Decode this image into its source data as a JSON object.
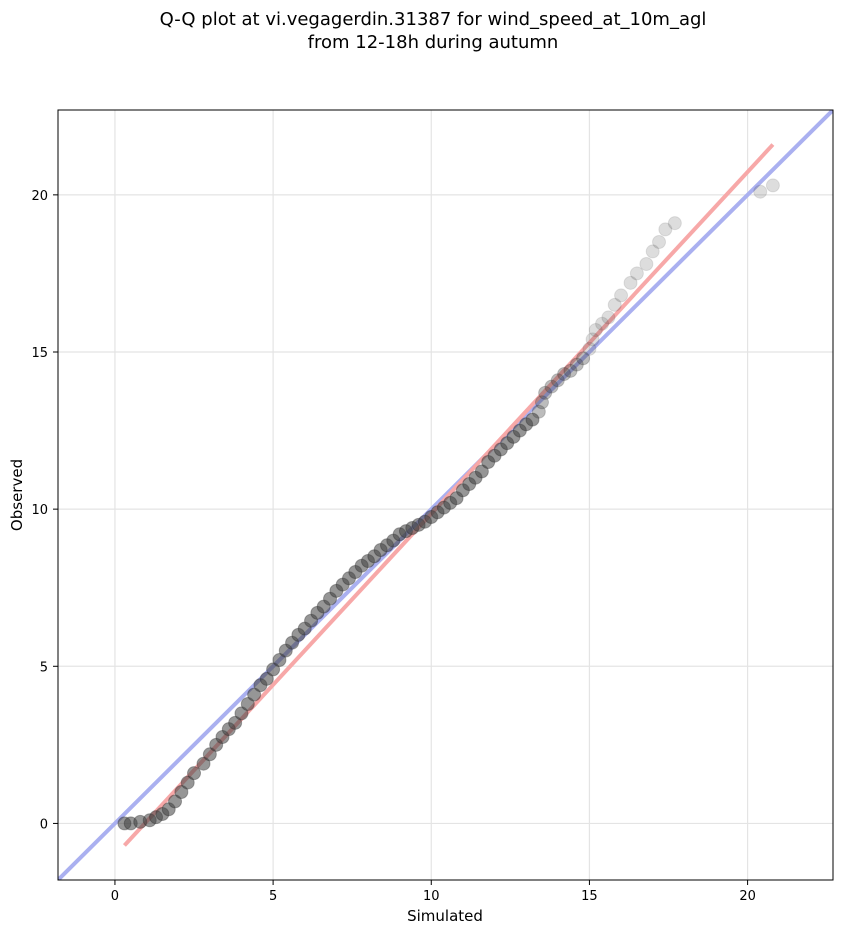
{
  "chart_data": {
    "type": "scatter",
    "title_lines": [
      "Q-Q plot at vi.vegagerdin.31387 for wind_speed_at_10m_agl",
      "from 12-18h during autumn"
    ],
    "xlabel": "Simulated",
    "ylabel": "Observed",
    "xlim": [
      -1.8,
      22.7
    ],
    "ylim": [
      -1.8,
      22.7
    ],
    "xticks": [
      0,
      5,
      10,
      15,
      20
    ],
    "yticks": [
      0,
      5,
      10,
      15,
      20
    ],
    "grid": true,
    "reference_line": {
      "color": "#aab0f0",
      "from": [
        -1.8,
        -1.8
      ],
      "to": [
        22.7,
        22.7
      ]
    },
    "fit_line": {
      "color": "#f7a8a8",
      "from": [
        0.3,
        -0.7
      ],
      "to": [
        20.8,
        21.6
      ]
    },
    "points": [
      [
        0.3,
        0.0
      ],
      [
        0.5,
        0.0
      ],
      [
        0.8,
        0.05
      ],
      [
        1.1,
        0.1
      ],
      [
        1.3,
        0.2
      ],
      [
        1.5,
        0.3
      ],
      [
        1.7,
        0.45
      ],
      [
        1.9,
        0.7
      ],
      [
        2.1,
        1.0
      ],
      [
        2.3,
        1.3
      ],
      [
        2.5,
        1.6
      ],
      [
        2.8,
        1.9
      ],
      [
        3.0,
        2.2
      ],
      [
        3.2,
        2.5
      ],
      [
        3.4,
        2.75
      ],
      [
        3.6,
        3.0
      ],
      [
        3.8,
        3.2
      ],
      [
        4.0,
        3.5
      ],
      [
        4.2,
        3.8
      ],
      [
        4.4,
        4.1
      ],
      [
        4.6,
        4.4
      ],
      [
        4.8,
        4.6
      ],
      [
        5.0,
        4.9
      ],
      [
        5.2,
        5.2
      ],
      [
        5.4,
        5.5
      ],
      [
        5.6,
        5.75
      ],
      [
        5.8,
        6.0
      ],
      [
        6.0,
        6.2
      ],
      [
        6.2,
        6.45
      ],
      [
        6.4,
        6.7
      ],
      [
        6.6,
        6.9
      ],
      [
        6.8,
        7.15
      ],
      [
        7.0,
        7.4
      ],
      [
        7.2,
        7.6
      ],
      [
        7.4,
        7.8
      ],
      [
        7.6,
        8.0
      ],
      [
        7.8,
        8.2
      ],
      [
        8.0,
        8.35
      ],
      [
        8.2,
        8.5
      ],
      [
        8.4,
        8.7
      ],
      [
        8.6,
        8.85
      ],
      [
        8.8,
        9.0
      ],
      [
        9.0,
        9.2
      ],
      [
        9.2,
        9.3
      ],
      [
        9.4,
        9.4
      ],
      [
        9.6,
        9.5
      ],
      [
        9.8,
        9.6
      ],
      [
        10.0,
        9.75
      ],
      [
        10.2,
        9.9
      ],
      [
        10.4,
        10.05
      ],
      [
        10.6,
        10.2
      ],
      [
        10.8,
        10.35
      ],
      [
        11.0,
        10.6
      ],
      [
        11.2,
        10.8
      ],
      [
        11.4,
        11.0
      ],
      [
        11.6,
        11.2
      ],
      [
        11.8,
        11.5
      ],
      [
        12.0,
        11.7
      ],
      [
        12.2,
        11.9
      ],
      [
        12.4,
        12.1
      ],
      [
        12.6,
        12.3
      ],
      [
        12.8,
        12.5
      ],
      [
        13.0,
        12.7
      ],
      [
        13.2,
        12.85
      ],
      [
        13.4,
        13.1
      ],
      [
        13.5,
        13.4
      ],
      [
        13.6,
        13.7
      ],
      [
        13.8,
        13.9
      ],
      [
        14.0,
        14.1
      ],
      [
        14.2,
        14.3
      ],
      [
        14.4,
        14.4
      ],
      [
        14.6,
        14.6
      ],
      [
        14.8,
        14.8
      ],
      [
        15.0,
        15.1
      ],
      [
        15.1,
        15.4
      ],
      [
        15.2,
        15.7
      ],
      [
        15.4,
        15.9
      ],
      [
        15.6,
        16.1
      ],
      [
        15.8,
        16.5
      ],
      [
        16.0,
        16.8
      ],
      [
        16.3,
        17.2
      ],
      [
        16.5,
        17.5
      ],
      [
        16.8,
        17.8
      ],
      [
        17.0,
        18.2
      ],
      [
        17.2,
        18.5
      ],
      [
        17.4,
        18.9
      ],
      [
        17.7,
        19.1
      ],
      [
        20.4,
        20.1
      ],
      [
        20.8,
        20.3
      ]
    ]
  }
}
